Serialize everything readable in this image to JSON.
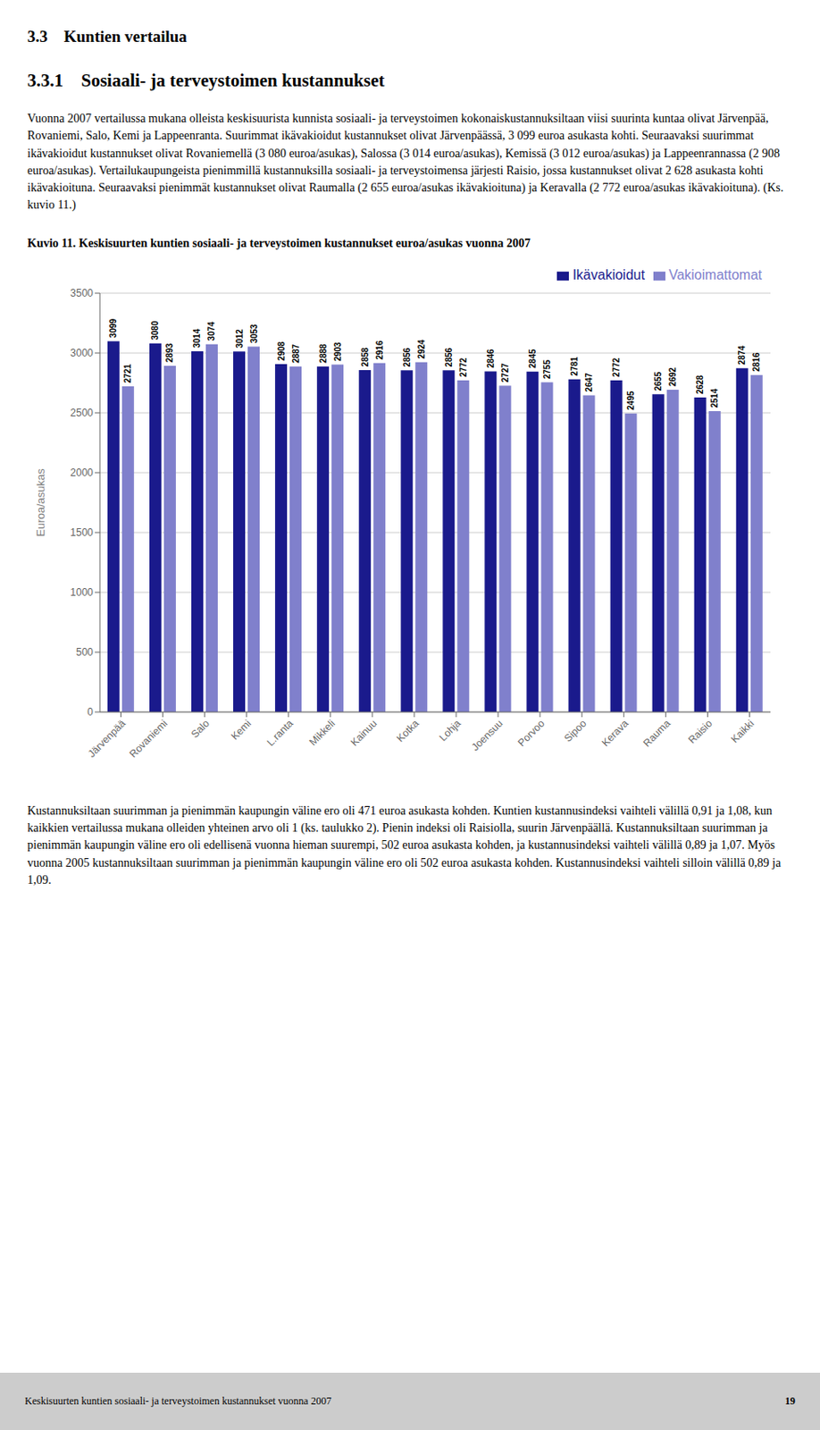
{
  "section_title": "3.3 Kuntien vertailua",
  "subsection_title": "3.3.1 Sosiaali- ja terveystoimen kustannukset",
  "body_text": "Vuonna 2007 vertailussa mukana olleista keskisuurista kunnista sosiaali- ja terveystoimen kokonaiskustannuksiltaan viisi suurinta kuntaa olivat Järvenpää, Rovaniemi, Salo, Kemi ja Lappeenranta. Suurimmat ikävakioidut kustannukset olivat Järvenpäässä, 3 099 euroa asukasta kohti. Seuraavaksi suurimmat ikävakioidut kustannukset olivat Rovaniemellä (3 080 euroa/asukas), Salossa (3 014 euroa/asukas), Kemissä (3 012 euroa/asukas) ja Lappeenrannassa (2 908 euroa/asukas). Vertailukaupungeista pienimmillä kustannuksilla sosiaali- ja terveystoimensa järjesti Raisio, jossa kustannukset olivat 2 628 asukasta kohti ikävakioituna. Seuraavaksi pienimmät kustannukset olivat Raumalla (2 655 euroa/asukas ikävakioituna) ja Keravalla (2 772 euroa/asukas ikävakioituna). (Ks. kuvio 11.)",
  "body_text2": "Kustannuksiltaan suurimman ja pienimmän kaupungin väline ero oli 471 euroa asukasta kohden. Kuntien kustannusindeksi vaihteli välillä 0,91 ja 1,08, kun kaikkien vertailussa mukana olleiden yhteinen arvo oli 1 (ks. taulukko 2). Pienin indeksi oli Raisiolla, suurin Järvenpäällä. Kustannuksiltaan suurimman ja pienimmän kaupungin väline ero oli edellisenä vuonna hieman suurempi, 502 euroa asukasta kohden, ja kustannusindeksi vaihteli välillä 0,89 ja 1,07. Myös vuonna 2005 kustannuksiltaan suurimman ja pienimmän kaupungin väline ero oli 502 euroa asukasta kohden. Kustannusindeksi vaihteli silloin välillä 0,89 ja 1,09.",
  "footer_text": "Keskisuurten kuntien sosiaali- ja terveystoimen kustannukset vuonna 2007",
  "footer_page": "19",
  "chart_data": {
    "type": "bar",
    "title": "Kuvio 11. Keskisuurten kuntien sosiaali- ja terveystoimen kustannukset euroa/asukas vuonna 2007",
    "categories": [
      "Järvenpää",
      "Rovaniemi",
      "Salo",
      "Kemi",
      "L.ranta",
      "Mikkeli",
      "Kainuu",
      "Kotka",
      "Lohja",
      "Joensuu",
      "Porvoo",
      "Sipoo",
      "Kerava",
      "Rauma",
      "Raisio",
      "Kaikki"
    ],
    "series": [
      {
        "name": "Ikävakioidut",
        "color": "#1a1a8c",
        "values": [
          3099,
          3080,
          3014,
          3012,
          2908,
          2888,
          2858,
          2856,
          2856,
          2846,
          2845,
          2781,
          2772,
          2655,
          2628,
          2874
        ]
      },
      {
        "name": "Vakioimattomat",
        "color": "#8080cc",
        "values": [
          2721,
          2893,
          3074,
          3053,
          2887,
          2903,
          2916,
          2924,
          2772,
          2727,
          2755,
          2647,
          2495,
          2692,
          2514,
          2816
        ]
      }
    ],
    "ylabel": "Euroa/asukas",
    "ylim": [
      0,
      3500
    ],
    "yticks": [
      0,
      500,
      1000,
      1500,
      2000,
      2500,
      3000,
      3500
    ],
    "grid": true,
    "legend": "top",
    "data_labels": true
  }
}
